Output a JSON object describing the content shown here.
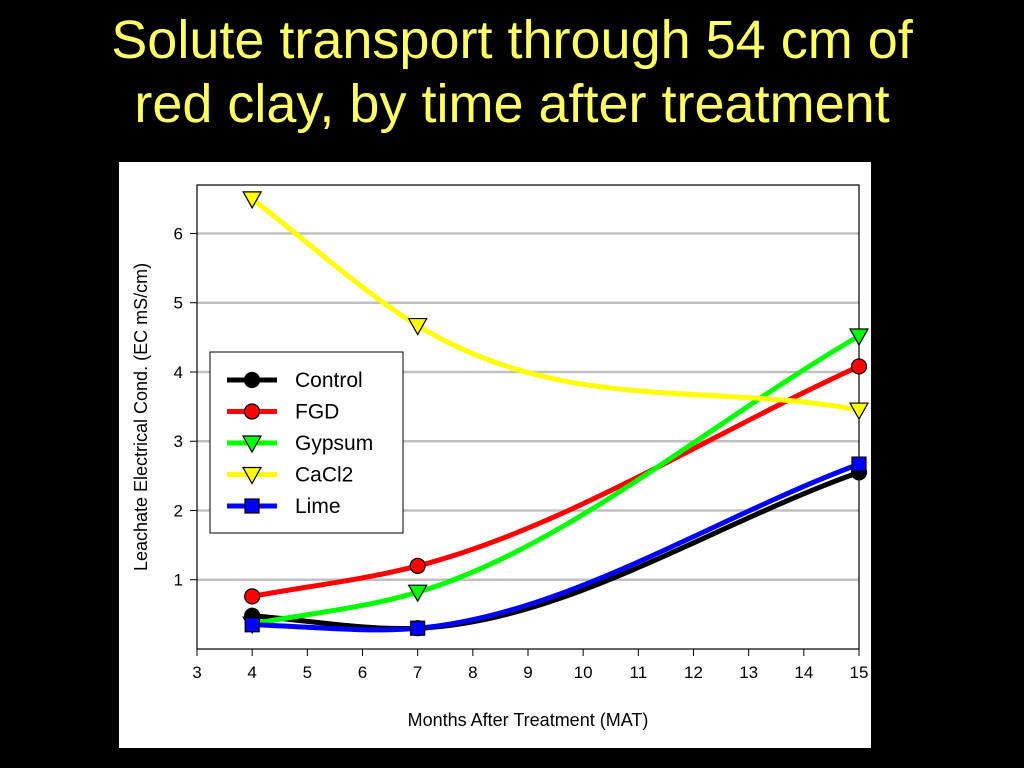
{
  "slide": {
    "title_line1": "Solute transport through 54 cm of",
    "title_line2": "red clay, by time after treatment"
  },
  "chart_data": {
    "type": "line",
    "title": "",
    "xlabel": "Months After Treatment (MAT)",
    "ylabel": "Leachate Electrical Cond. (EC mS/cm)",
    "xlim": [
      3,
      15
    ],
    "ylim": [
      0,
      6.7
    ],
    "x_ticks": [
      3,
      4,
      5,
      6,
      7,
      8,
      9,
      10,
      11,
      12,
      13,
      14,
      15
    ],
    "y_ticks": [
      1,
      2,
      3,
      4,
      5,
      6
    ],
    "grid": "horizontal",
    "legend_position": "left-middle",
    "series": [
      {
        "name": "Control",
        "color": "#000000",
        "marker": "circle",
        "x": [
          4,
          7,
          15
        ],
        "y": [
          0.48,
          0.3,
          2.55
        ]
      },
      {
        "name": "FGD",
        "color": "#ff0000",
        "marker": "circle",
        "x": [
          4,
          7,
          15
        ],
        "y": [
          0.76,
          1.2,
          4.08
        ]
      },
      {
        "name": "Gypsum",
        "color": "#00ff00",
        "marker": "triangle-down",
        "x": [
          4,
          7,
          15
        ],
        "y": [
          0.36,
          0.82,
          4.52
        ]
      },
      {
        "name": "CaCl2",
        "color": "#ffff00",
        "marker": "triangle-down",
        "x": [
          4,
          7,
          15
        ],
        "y": [
          6.5,
          4.67,
          3.45
        ]
      },
      {
        "name": "Lime",
        "color": "#0000ff",
        "marker": "square",
        "x": [
          4,
          7,
          15
        ],
        "y": [
          0.35,
          0.3,
          2.67
        ]
      }
    ]
  }
}
